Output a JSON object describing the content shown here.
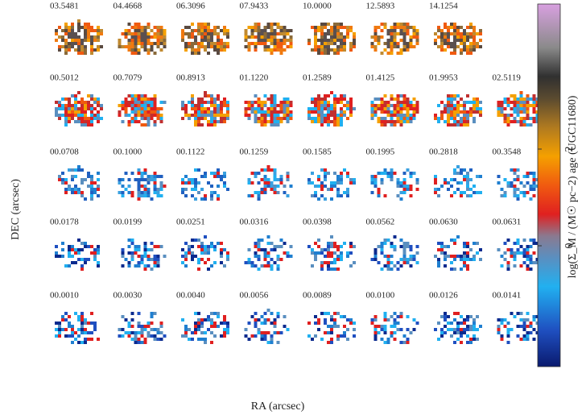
{
  "axes": {
    "x_label": "RA (arcsec)",
    "y_label": "DEC (arcsec)"
  },
  "panels": [
    [
      "03.5481",
      "04.4668",
      "06.3096",
      "07.9433",
      "10.0000",
      "12.5893",
      "14.1254"
    ],
    [
      "00.5012",
      "00.7079",
      "00.8913",
      "01.1220",
      "01.2589",
      "01.4125",
      "01.9953",
      "02.5119"
    ],
    [
      "00.0708",
      "00.1000",
      "00.1122",
      "00.1259",
      "00.1585",
      "00.1995",
      "00.2818",
      "00.3548"
    ],
    [
      "00.0178",
      "00.0199",
      "00.0251",
      "00.0316",
      "00.0398",
      "00.0562",
      "00.0630",
      "00.0631"
    ],
    [
      "00.0010",
      "00.0030",
      "00.0040",
      "00.0056",
      "00.0089",
      "00.0100",
      "00.0126",
      "00.0141"
    ]
  ],
  "colorbar": {
    "label": "log(Σ_M / (M☉ pc−2) age (UGC11680)",
    "lim": [
      -2.5,
      5
    ],
    "ticks": [
      0,
      2
    ]
  }
}
